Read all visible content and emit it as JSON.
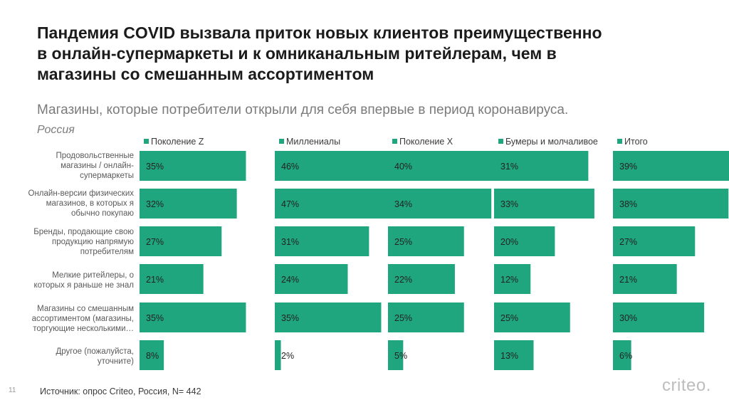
{
  "page": {
    "title_lines": [
      "Пандемия COVID вызвала приток новых клиентов преимущественно",
      "в онлайн-супермаркеты и к омниканальным ритейлерам, чем в",
      "магазины со смешанным ассортиментом"
    ],
    "subtitle": "Магазины, которые потребители открыли для себя впервые в период коронавируса.",
    "region": "Россия",
    "source": "Источник: опрос Criteo, Россия, N= 442",
    "page_number": "11",
    "logo_text": "criteo."
  },
  "chart_data": {
    "type": "bar",
    "orientation": "horizontal",
    "bar_color": "#1fa67e",
    "categories": [
      "Продовольственные магазины / онлайн-супермаркеты",
      "Онлайн-версии физических магазинов, в которых я обычно покупаю",
      "Бренды, продающие свою продукцию напрямую потребителям",
      "Мелкие ритейлеры, о которых я раньше не знал",
      "Магазины со смешанным ассортиментом (магазины, торгующие несколькими…",
      "Другое (пожалуйста, уточните)"
    ],
    "category_lines": [
      [
        "Продовольственные",
        "магазины / онлайн-",
        "супермаркеты"
      ],
      [
        "Онлайн-версии физических",
        "магазинов, в которых я",
        "обычно покупаю"
      ],
      [
        "Бренды, продающие свою",
        "продукцию напрямую",
        "потребителям"
      ],
      [
        "Мелкие ритейлеры, о",
        "которых я раньше не знал"
      ],
      [
        "Магазины со смешанным",
        "ассортиментом (магазины,",
        "торгующие несколькими…"
      ],
      [
        "Другое (пожалуйста,",
        "уточните)"
      ]
    ],
    "series": [
      {
        "name": "Поколение Z",
        "values": [
          35,
          32,
          27,
          21,
          35,
          8
        ],
        "labels": [
          "35%",
          "32%",
          "27%",
          "21%",
          "35%",
          "8%"
        ]
      },
      {
        "name": "Миллениалы",
        "values": [
          46,
          47,
          31,
          24,
          35,
          2
        ],
        "labels": [
          "46%",
          "47%",
          "31%",
          "24%",
          "35%",
          "2%"
        ]
      },
      {
        "name": "Поколение X",
        "values": [
          40,
          34,
          25,
          22,
          25,
          5
        ],
        "labels": [
          "40%",
          "34%",
          "25%",
          "22%",
          "25%",
          "5%"
        ]
      },
      {
        "name": "Бумеры и молчаливое",
        "values": [
          31,
          33,
          20,
          12,
          25,
          13
        ],
        "labels": [
          "31%",
          "33%",
          "20%",
          "12%",
          "25%",
          "13%"
        ]
      },
      {
        "name": "Итого",
        "values": [
          39,
          38,
          27,
          21,
          30,
          6
        ],
        "labels": [
          "39%",
          "38%",
          "27%",
          "21%",
          "30%",
          "6%"
        ]
      }
    ],
    "unit": "%"
  }
}
